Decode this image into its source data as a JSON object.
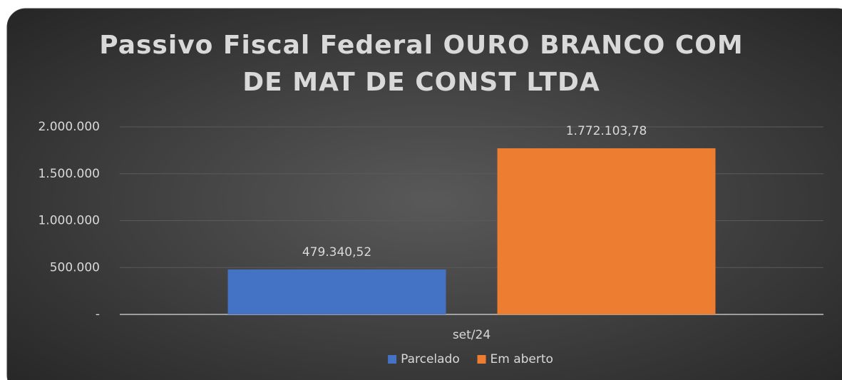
{
  "chart_data": {
    "type": "bar",
    "title": "Passivo Fiscal Federal OURO BRANCO COM DE MAT DE CONST LTDA",
    "categories": [
      "set/24"
    ],
    "series": [
      {
        "name": "Parcelado",
        "color": "#4472c4",
        "values": [
          479340.52
        ],
        "value_labels": [
          "479.340,52"
        ]
      },
      {
        "name": "Em aberto",
        "color": "#ed7d31",
        "values": [
          1772103.78
        ],
        "value_labels": [
          "1.772.103,78"
        ]
      }
    ],
    "ylim": [
      0,
      2000000
    ],
    "yticks": [
      {
        "value": 0,
        "label": "-"
      },
      {
        "value": 500000,
        "label": "500.000"
      },
      {
        "value": 1000000,
        "label": "1.000.000"
      },
      {
        "value": 1500000,
        "label": "1.500.000"
      },
      {
        "value": 2000000,
        "label": "2.000.000"
      }
    ],
    "grid": true,
    "legend": "bottom"
  }
}
